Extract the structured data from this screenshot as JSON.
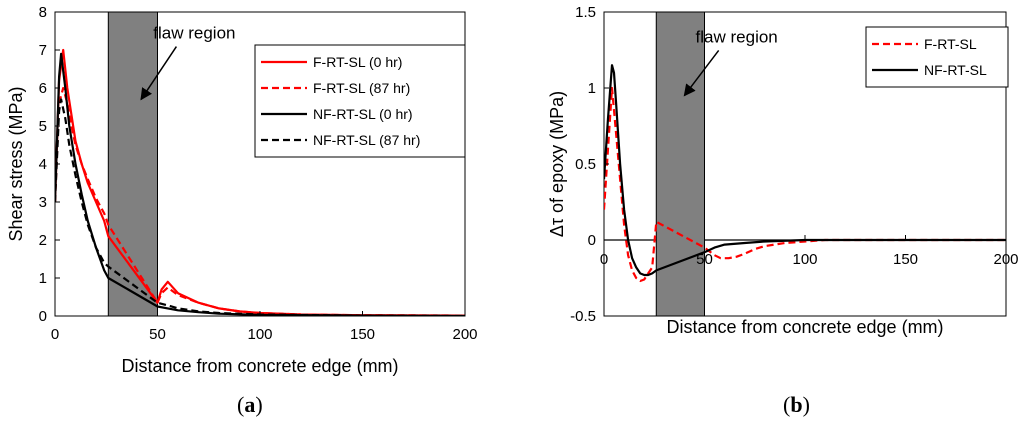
{
  "chart_data": [
    {
      "id": "a",
      "type": "line",
      "panel_label_open": "(",
      "panel_label_letter": "a",
      "panel_label_close": ")",
      "xlabel": "Distance from concrete edge (mm)",
      "ylabel": "Shear stress (MPa)",
      "xlim": [
        0,
        200
      ],
      "ylim": [
        0,
        8
      ],
      "xticks": [
        0,
        50,
        100,
        150,
        200
      ],
      "yticks": [
        0,
        1,
        2,
        3,
        4,
        5,
        6,
        7,
        8
      ],
      "legend_position": "top-right",
      "flaw_region": {
        "x_start": 26,
        "x_end": 50,
        "color": "#808080"
      },
      "annotation": {
        "text": "flaw region",
        "x": 68,
        "y": 7.3,
        "arrow_to_x": 42,
        "arrow_to_y": 5.7
      },
      "series": [
        {
          "name": "F-RT-SL (0 hr)",
          "color": "#ff0000",
          "dash": "solid",
          "x": [
            0,
            2,
            4,
            6,
            8,
            10,
            13,
            16,
            20,
            24,
            26,
            50,
            52,
            55,
            60,
            70,
            80,
            90,
            100,
            120,
            150,
            200
          ],
          "y": [
            3.0,
            6.2,
            7.0,
            6.0,
            5.3,
            4.6,
            4.0,
            3.5,
            3.0,
            2.5,
            2.1,
            0.35,
            0.7,
            0.9,
            0.6,
            0.35,
            0.2,
            0.12,
            0.08,
            0.04,
            0.02,
            0.01
          ]
        },
        {
          "name": "F-RT-SL (87 hr)",
          "color": "#ff0000",
          "dash": "dashed",
          "x": [
            0,
            2,
            4,
            6,
            8,
            10,
            13,
            16,
            20,
            24,
            26,
            50,
            52,
            55,
            60,
            70,
            80,
            90,
            100,
            120,
            150,
            200
          ],
          "y": [
            3.0,
            5.6,
            6.0,
            5.6,
            5.0,
            4.5,
            4.0,
            3.6,
            3.1,
            2.7,
            2.4,
            0.35,
            0.6,
            0.75,
            0.55,
            0.35,
            0.2,
            0.12,
            0.08,
            0.04,
            0.02,
            0.01
          ]
        },
        {
          "name": "NF-RT-SL (0 hr)",
          "color": "#000000",
          "dash": "solid",
          "x": [
            0,
            2,
            3,
            5,
            7,
            10,
            13,
            16,
            20,
            24,
            26,
            50,
            55,
            60,
            70,
            80,
            100,
            150,
            200
          ],
          "y": [
            3.0,
            6.3,
            6.9,
            6.0,
            5.0,
            4.0,
            3.2,
            2.5,
            1.8,
            1.2,
            1.0,
            0.25,
            0.2,
            0.15,
            0.1,
            0.06,
            0.03,
            0.01,
            0.0
          ]
        },
        {
          "name": "NF-RT-SL (87 hr)",
          "color": "#000000",
          "dash": "dashed",
          "x": [
            0,
            2,
            3,
            5,
            7,
            10,
            13,
            16,
            20,
            24,
            26,
            50,
            55,
            60,
            70,
            80,
            100,
            150,
            200
          ],
          "y": [
            3.0,
            5.4,
            5.7,
            5.2,
            4.5,
            3.7,
            3.0,
            2.4,
            1.8,
            1.4,
            1.3,
            0.35,
            0.28,
            0.2,
            0.12,
            0.08,
            0.04,
            0.01,
            0.0
          ]
        }
      ]
    },
    {
      "id": "b",
      "type": "line",
      "panel_label_open": "(",
      "panel_label_letter": "b",
      "panel_label_close": ")",
      "xlabel": "Distance from concrete edge (mm)",
      "ylabel": "Δτ of epoxy (MPa)",
      "xlim": [
        0,
        200
      ],
      "ylim": [
        -0.5,
        1.5
      ],
      "xticks": [
        0,
        50,
        100,
        150,
        200
      ],
      "yticks": [
        -0.5,
        0,
        0.5,
        1,
        1.5
      ],
      "ytick_labels": [
        "-0.5",
        "0",
        "0.5",
        "1",
        "1.5"
      ],
      "legend_position": "top-right",
      "flaw_region": {
        "x_start": 26,
        "x_end": 50,
        "color": "#808080"
      },
      "annotation": {
        "text": "flaw region",
        "x": 66,
        "y": 1.3,
        "arrow_to_x": 40,
        "arrow_to_y": 0.95
      },
      "series": [
        {
          "name": "F-RT-SL",
          "color": "#ff0000",
          "dash": "dashed",
          "x": [
            0,
            2,
            4,
            6,
            8,
            10,
            12,
            14,
            16,
            18,
            20,
            22,
            24,
            26,
            50,
            52,
            55,
            58,
            62,
            66,
            70,
            75,
            80,
            90,
            100,
            110,
            120,
            150,
            200
          ],
          "y": [
            0.2,
            0.6,
            1.0,
            0.7,
            0.4,
            0.1,
            -0.1,
            -0.2,
            -0.25,
            -0.27,
            -0.26,
            -0.22,
            -0.18,
            0.12,
            -0.05,
            -0.07,
            -0.1,
            -0.12,
            -0.12,
            -0.11,
            -0.09,
            -0.06,
            -0.04,
            -0.02,
            -0.01,
            0.0,
            0.0,
            0.0,
            0.0
          ]
        },
        {
          "name": "NF-RT-SL",
          "color": "#000000",
          "dash": "solid",
          "x": [
            0,
            2,
            4,
            5,
            6,
            8,
            10,
            12,
            14,
            16,
            18,
            20,
            22,
            24,
            26,
            50,
            55,
            60,
            70,
            80,
            90,
            100,
            120,
            150,
            200
          ],
          "y": [
            0.4,
            0.8,
            1.15,
            1.1,
            0.9,
            0.5,
            0.2,
            0.0,
            -0.12,
            -0.18,
            -0.22,
            -0.23,
            -0.23,
            -0.22,
            -0.2,
            -0.08,
            -0.05,
            -0.03,
            -0.02,
            -0.01,
            -0.005,
            0.0,
            0.0,
            0.0,
            0.0
          ]
        }
      ]
    }
  ]
}
